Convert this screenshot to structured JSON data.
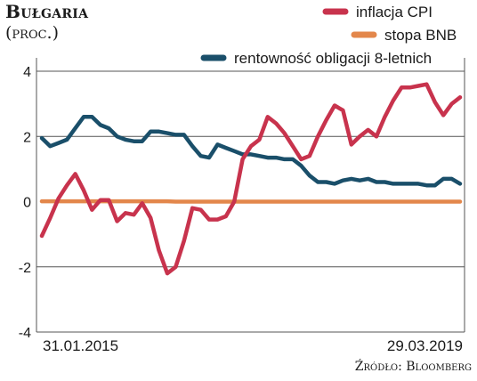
{
  "chart_data": {
    "type": "line",
    "title": "Bułgaria",
    "subtitle": "(proc.)",
    "source": "Źródło: Bloomberg",
    "ylim": [
      -4,
      4
    ],
    "yticks": [
      {
        "value": 4,
        "label": "4"
      },
      {
        "value": 2,
        "label": "2"
      },
      {
        "value": 0,
        "label": "0"
      },
      {
        "value": -2,
        "label": "-2"
      },
      {
        "value": -4,
        "label": "-4"
      }
    ],
    "x_labels": [
      "31.01.2015",
      "29.03.2019"
    ],
    "x_count": 51,
    "grid": true,
    "legend_position": "top-right",
    "series": [
      {
        "name": "inflacja CPI",
        "color": "#c8334d",
        "values": [
          -1.05,
          -0.5,
          0.1,
          0.5,
          0.85,
          0.35,
          -0.25,
          0.05,
          0.05,
          -0.6,
          -0.35,
          -0.4,
          -0.05,
          -0.5,
          -1.5,
          -2.2,
          -2.0,
          -1.2,
          -0.2,
          -0.25,
          -0.55,
          -0.55,
          -0.45,
          0.0,
          1.3,
          1.7,
          1.9,
          2.6,
          2.4,
          2.1,
          1.7,
          1.3,
          1.4,
          2.0,
          2.5,
          2.95,
          2.8,
          1.75,
          2.0,
          2.2,
          2.0,
          2.6,
          3.1,
          3.5,
          3.5,
          3.55,
          3.6,
          3.05,
          2.65,
          3.0,
          3.2
        ]
      },
      {
        "name": "stopa BNB",
        "color": "#e3874b",
        "values": [
          0.01,
          0.01,
          0.01,
          0.01,
          0.01,
          0.01,
          0.01,
          0.01,
          0.01,
          0.01,
          0.01,
          0.01,
          0.01,
          0.01,
          0.01,
          0.01,
          0.0,
          0.0,
          0.0,
          0.0,
          0.0,
          0.0,
          0.0,
          0.0,
          0.0,
          0.0,
          0.0,
          0.0,
          0.0,
          0.0,
          0.0,
          0.0,
          0.0,
          0.0,
          0.0,
          0.0,
          0.0,
          0.0,
          0.0,
          0.0,
          0.0,
          0.0,
          0.0,
          0.0,
          0.0,
          0.0,
          0.0,
          0.0,
          0.0,
          0.0,
          0.0
        ]
      },
      {
        "name": "rentowność obligacji 8-letnich",
        "color": "#1a4f6a",
        "values": [
          1.95,
          1.7,
          1.8,
          1.9,
          2.25,
          2.6,
          2.6,
          2.35,
          2.25,
          2.0,
          1.9,
          1.85,
          1.85,
          2.15,
          2.15,
          2.1,
          2.05,
          2.05,
          1.7,
          1.4,
          1.35,
          1.75,
          1.65,
          1.55,
          1.45,
          1.45,
          1.4,
          1.35,
          1.35,
          1.3,
          1.3,
          1.1,
          0.8,
          0.6,
          0.6,
          0.55,
          0.65,
          0.7,
          0.65,
          0.7,
          0.6,
          0.6,
          0.55,
          0.55,
          0.55,
          0.55,
          0.5,
          0.5,
          0.7,
          0.7,
          0.55
        ]
      }
    ]
  }
}
